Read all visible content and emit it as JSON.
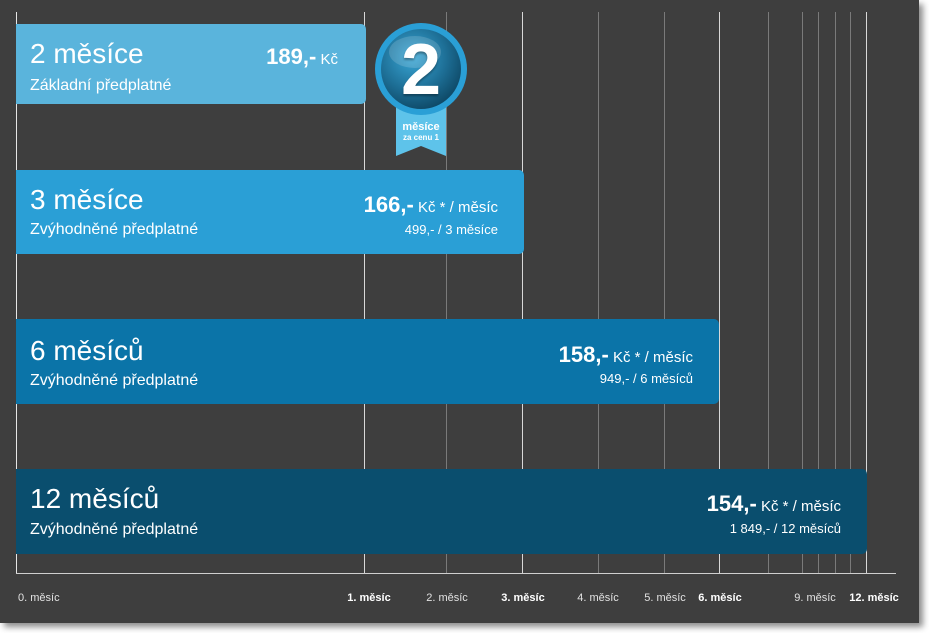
{
  "bars": [
    {
      "title": "2 měsíce",
      "subtitle": "Základní předplatné",
      "price_big": "189,-",
      "price_rest": " Kč",
      "total": "",
      "color": "#5ab4dc"
    },
    {
      "title": "3 měsíce",
      "subtitle": "Zvýhodněné předplatné",
      "price_big": "166,-",
      "price_rest": " Kč * / měsíc",
      "total": "499,- / 3 měsíce",
      "color": "#2a9fd6"
    },
    {
      "title": "6 měsíců",
      "subtitle": "Zvýhodněné předplatné",
      "price_big": "158,-",
      "price_rest": " Kč * / měsíc",
      "total": "949,- / 6 měsíců",
      "color": "#0b74a8"
    },
    {
      "title": "12 měsíců",
      "subtitle": "Zvýhodněné předplatné",
      "price_big": "154,-",
      "price_rest": " Kč * / měsíc",
      "total": "1 849,- / 12 měsíců",
      "color": "#0a4e6e"
    }
  ],
  "badge": {
    "digit": "2",
    "line1": "měsíce",
    "line2": "za cenu 1",
    "color": "#2a9fd6"
  },
  "axis": {
    "labels": [
      {
        "text": "0. měsíc",
        "bold": false
      },
      {
        "text": "1. měsíc",
        "bold": true
      },
      {
        "text": "2. měsíc",
        "bold": false
      },
      {
        "text": "3. měsíc",
        "bold": true
      },
      {
        "text": "4. měsíc",
        "bold": false
      },
      {
        "text": "5. měsíc",
        "bold": false
      },
      {
        "text": "6. měsíc",
        "bold": true
      },
      {
        "text": "9. měsíc",
        "bold": false
      },
      {
        "text": "12. měsíc",
        "bold": true
      }
    ]
  }
}
